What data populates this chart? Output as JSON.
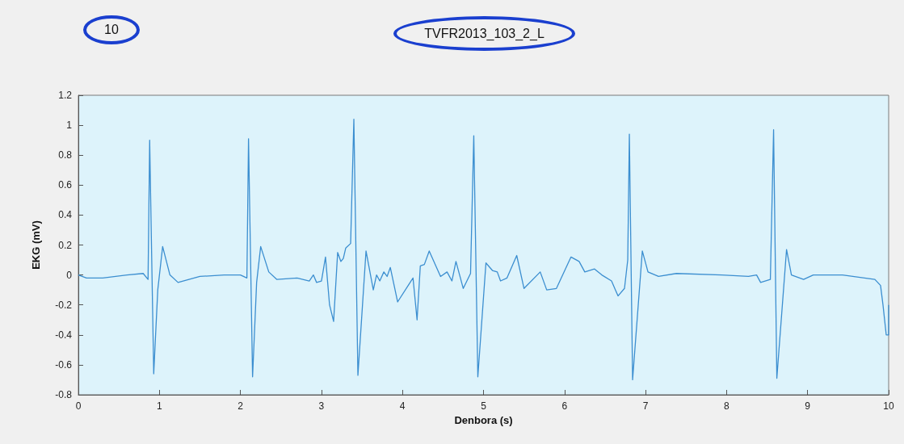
{
  "chart_data": {
    "type": "line",
    "title": "TVFR2013_103_2_L",
    "annotations": [
      "10"
    ],
    "xlabel": "Denbora (s)",
    "ylabel": "EKG (mV)",
    "xlim": [
      0,
      10
    ],
    "xticks": [
      0,
      1,
      2,
      3,
      4,
      5,
      6,
      7,
      8,
      9,
      10
    ],
    "ylim": [
      -0.8,
      1.2
    ],
    "yticks": [
      -0.8,
      -0.6,
      -0.4,
      -0.2,
      0,
      0.2,
      0.4,
      0.6,
      0.8,
      1,
      1.2
    ],
    "marker": "none",
    "series": [
      {
        "color": "#3b8ed0",
        "x": [
          0,
          0.1,
          0.3,
          0.6,
          0.8,
          0.86,
          0.88,
          0.93,
          0.98,
          1.04,
          1.13,
          1.23,
          1.5,
          1.8,
          2.0,
          2.08,
          2.1,
          2.15,
          2.2,
          2.25,
          2.35,
          2.45,
          2.7,
          2.85,
          2.9,
          2.94,
          3.0,
          3.05,
          3.1,
          3.15,
          3.2,
          3.24,
          3.27,
          3.3,
          3.36,
          3.4,
          3.45,
          3.55,
          3.64,
          3.68,
          3.72,
          3.77,
          3.81,
          3.85,
          3.94,
          4.13,
          4.18,
          4.22,
          4.27,
          4.33,
          4.47,
          4.55,
          4.61,
          4.66,
          4.75,
          4.84,
          4.88,
          4.93,
          5.03,
          5.11,
          5.17,
          5.21,
          5.29,
          5.41,
          5.5,
          5.7,
          5.78,
          5.9,
          6.08,
          6.18,
          6.25,
          6.37,
          6.46,
          6.58,
          6.66,
          6.74,
          6.78,
          6.8,
          6.84,
          6.96,
          7.03,
          7.16,
          7.38,
          7.94,
          8.27,
          8.37,
          8.42,
          8.54,
          8.58,
          8.62,
          8.74,
          8.8,
          8.95,
          9.07,
          9.43,
          9.83,
          9.9,
          9.93,
          9.97,
          10,
          10
        ],
        "values": [
          0,
          -0.02,
          -0.02,
          0,
          0.01,
          -0.03,
          0.9,
          -0.66,
          -0.1,
          0.19,
          0,
          -0.05,
          -0.01,
          0,
          0,
          -0.02,
          0.91,
          -0.68,
          -0.05,
          0.19,
          0.02,
          -0.03,
          -0.02,
          -0.04,
          0,
          -0.05,
          -0.04,
          0.12,
          -0.2,
          -0.31,
          0.15,
          0.09,
          0.11,
          0.18,
          0.21,
          1.04,
          -0.67,
          0.16,
          -0.1,
          0,
          -0.04,
          0.02,
          -0.01,
          0.05,
          -0.18,
          -0.02,
          -0.3,
          0.06,
          0.07,
          0.16,
          -0.01,
          0.02,
          -0.04,
          0.09,
          -0.09,
          0.01,
          0.93,
          -0.68,
          0.08,
          0.03,
          0.02,
          -0.04,
          -0.02,
          0.13,
          -0.09,
          0.02,
          -0.1,
          -0.09,
          0.12,
          0.09,
          0.02,
          0.04,
          0,
          -0.04,
          -0.14,
          -0.09,
          0.1,
          0.94,
          -0.7,
          0.16,
          0.02,
          -0.01,
          0.01,
          0,
          -0.01,
          0,
          -0.05,
          -0.03,
          0.97,
          -0.69,
          0.17,
          0,
          -0.03,
          0,
          0,
          -0.03,
          -0.07,
          -0.2,
          -0.4,
          -0.4,
          -0.2
        ]
      }
    ]
  }
}
